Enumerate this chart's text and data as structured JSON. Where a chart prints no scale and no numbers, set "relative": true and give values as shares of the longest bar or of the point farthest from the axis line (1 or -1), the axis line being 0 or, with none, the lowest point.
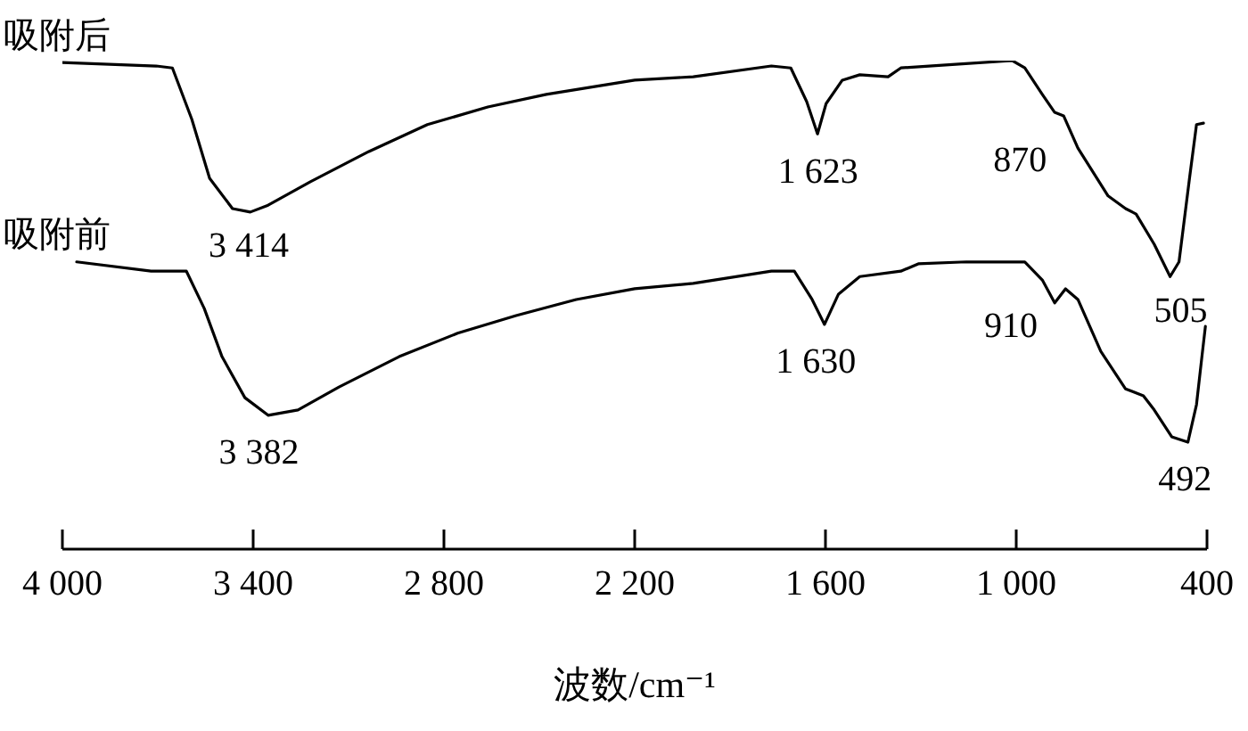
{
  "chart_data": {
    "type": "line",
    "relative": true,
    "xlabel": "波数/cm⁻¹",
    "legend": false,
    "marker": "none",
    "line_style": "solid",
    "grid": false,
    "xlim": [
      4000,
      400
    ],
    "xticks": [
      {
        "value": 4000,
        "label": "4 000"
      },
      {
        "value": 3400,
        "label": "3 400"
      },
      {
        "value": 2800,
        "label": "2 800"
      },
      {
        "value": 2200,
        "label": "2 200"
      },
      {
        "value": 1600,
        "label": "1 600"
      },
      {
        "value": 1000,
        "label": "1 000"
      },
      400
    ],
    "series": [
      {
        "name": "吸附后",
        "color": "#000000",
        "x": [
          4000,
          3705,
          3654,
          3593,
          3537,
          3465,
          3409,
          3353,
          3220,
          3036,
          2852,
          2662,
          2478,
          2200,
          2016,
          1770,
          1709,
          1659,
          1625,
          1598,
          1547,
          1492,
          1403,
          1363,
          1180,
          1012,
          973,
          918,
          879,
          851,
          806,
          711,
          656,
          623,
          566,
          516,
          488,
          455,
          433,
          411
        ],
        "values": [
          0.996,
          0.989,
          0.985,
          0.88,
          0.759,
          0.697,
          0.69,
          0.704,
          0.752,
          0.814,
          0.869,
          0.905,
          0.931,
          0.96,
          0.967,
          0.989,
          0.985,
          0.916,
          0.85,
          0.912,
          0.96,
          0.971,
          0.967,
          0.985,
          0.993,
          1,
          0.985,
          0.931,
          0.894,
          0.887,
          0.821,
          0.723,
          0.697,
          0.686,
          0.624,
          0.558,
          0.588,
          0.759,
          0.869,
          0.872
        ]
      },
      {
        "name": "吸附前",
        "color": "#000000",
        "x": [
          3955,
          3721,
          3610,
          3554,
          3498,
          3426,
          3353,
          3259,
          3130,
          2941,
          2757,
          2573,
          2384,
          2200,
          2016,
          1770,
          1698,
          1642,
          1603,
          1559,
          1492,
          1363,
          1308,
          1157,
          973,
          918,
          879,
          845,
          806,
          734,
          656,
          600,
          566,
          511,
          460,
          433,
          416,
          405
        ],
        "values": [
          0.588,
          0.569,
          0.569,
          0.493,
          0.394,
          0.31,
          0.274,
          0.285,
          0.332,
          0.394,
          0.442,
          0.478,
          0.511,
          0.533,
          0.544,
          0.569,
          0.569,
          0.511,
          0.46,
          0.522,
          0.558,
          0.569,
          0.584,
          0.588,
          0.588,
          0.551,
          0.504,
          0.533,
          0.511,
          0.405,
          0.328,
          0.314,
          0.285,
          0.23,
          0.219,
          0.296,
          0.394,
          0.456
        ]
      }
    ],
    "annotations": [
      {
        "text": "3 414",
        "x": 3414,
        "y": 0.69
      },
      {
        "text": "1 623",
        "x": 1623,
        "y": 0.85
      },
      {
        "text": "870",
        "x": 870,
        "y": 0.887
      },
      {
        "text": "505",
        "x": 505,
        "y": 0.558
      },
      {
        "text": "3 382",
        "x": 3382,
        "y": 0.274
      },
      {
        "text": "1 630",
        "x": 1630,
        "y": 0.46
      },
      {
        "text": "910",
        "x": 910,
        "y": 0.504
      },
      {
        "text": "492",
        "x": 492,
        "y": 0.219
      }
    ]
  }
}
